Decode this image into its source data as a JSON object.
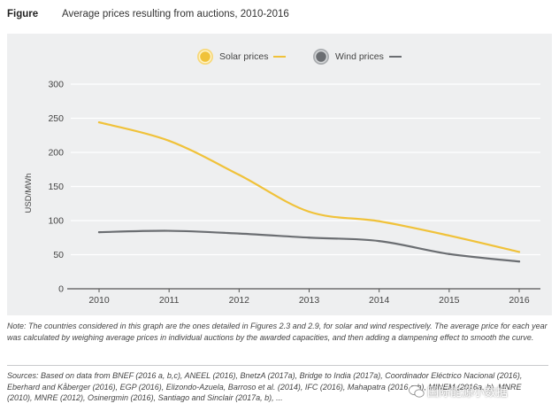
{
  "figure": {
    "label": "Figure",
    "title": "Average prices resulting from auctions, 2010-2016"
  },
  "chart_data": {
    "type": "line",
    "x": [
      "2010",
      "2011",
      "2012",
      "2013",
      "2014",
      "2015",
      "2016"
    ],
    "ylabel": "USD/MWh",
    "ylim": [
      0,
      300
    ],
    "yticks": [
      0,
      50,
      100,
      150,
      200,
      250,
      300
    ],
    "grid": true,
    "legend_position": "top-center",
    "series": [
      {
        "name": "Solar prices",
        "color": "#f0c23a",
        "values": [
          244,
          217,
          167,
          113,
          99,
          78,
          54
        ]
      },
      {
        "name": "Wind prices",
        "color": "#6b6e72",
        "values": [
          83,
          85,
          81,
          75,
          70,
          51,
          40
        ]
      }
    ]
  },
  "colors": {
    "panel": "#eeeff0",
    "grid": "#ffffff",
    "axis": "#555555"
  },
  "note": "Note: The countries considered in this graph are the ones detailed in Figures 2.3 and 2.9, for solar and wind respectively. The average price for each year was calculated by weighing average prices in individual auctions by the awarded capacities, and then adding a dampening effect to smooth the curve.",
  "sources": "Sources: Based on data from BNEF (2016 a, b,c), ANEEL (2016), BnetzA (2017a), Bridge to India (2017a), Coordinador Eléctrico Nacional (2016), Eberhard and Kåberger (2016), EGP (2016), Elizondo-Azuela, Barroso et al. (2014), IFC (2016), Mahapatra (2016 a,b), MINEM (2016a, b), MNRE (2010), MNRE (2012), Osinergmin (2016), Santiago and Sinclair (2017a, b), ...",
  "watermark": "国际能源小数据"
}
